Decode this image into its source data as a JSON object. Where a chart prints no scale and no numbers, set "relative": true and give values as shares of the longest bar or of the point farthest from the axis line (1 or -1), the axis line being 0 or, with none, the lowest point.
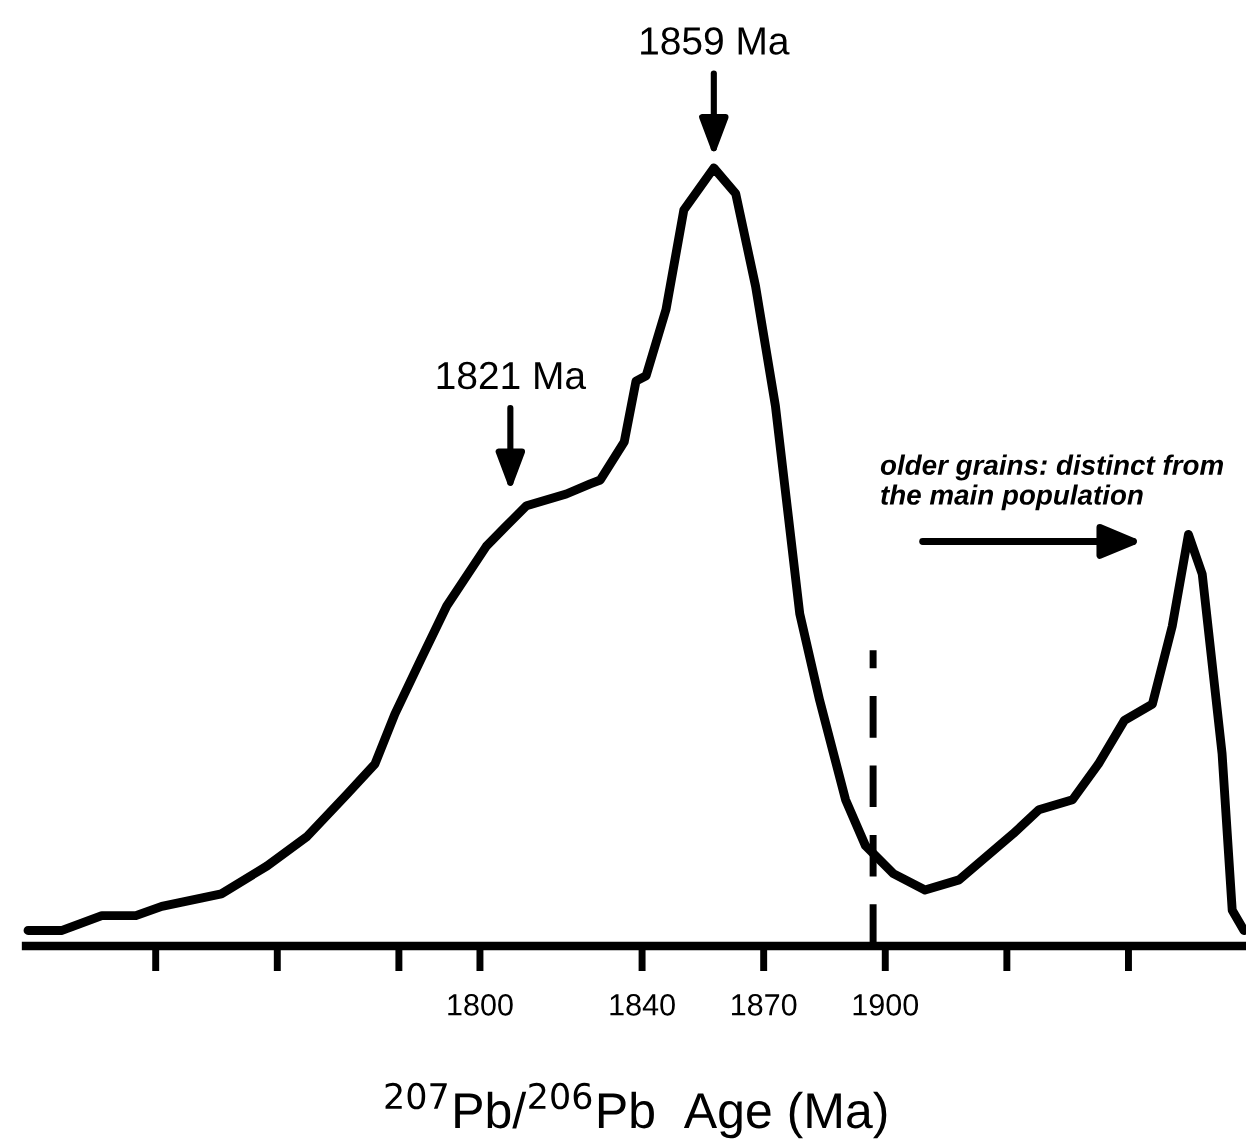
{
  "chart_data": {
    "type": "line",
    "relative": true,
    "color": "#000000",
    "marker": "none",
    "line_style": "solid",
    "grid": false,
    "legend": false,
    "tick_labels": "x",
    "xlabel": "$^{207}$Pb/$^{206}$Pb  Age (Ma)",
    "xlim": [
      1688,
      1989
    ],
    "xticks": [
      {
        "value": 1720,
        "label": null
      },
      {
        "value": 1750,
        "label": null
      },
      {
        "value": 1780,
        "label": null
      },
      1800,
      1840,
      1870,
      1900,
      {
        "value": 1930,
        "label": null
      },
      {
        "value": 1960,
        "label": null
      }
    ],
    "x": [
      1688.5,
      1696.9,
      1706.7,
      1715.1,
      1721.5,
      1736.2,
      1747.5,
      1757.4,
      1767.2,
      1774.1,
      1779.0,
      1785.4,
      1791.8,
      1801.6,
      1806.5,
      1811.5,
      1821.3,
      1827.2,
      1829.7,
      1835.6,
      1838.5,
      1841.0,
      1845.9,
      1850.3,
      1857.7,
      1863.1,
      1868.0,
      1872.9,
      1878.9,
      1883.8,
      1890.2,
      1895.1,
      1902.0,
      1909.8,
      1918.2,
      1931.5,
      1937.9,
      1946.2,
      1952.6,
      1959.0,
      1965.9,
      1970.8,
      1974.8,
      1978.2,
      1983.1,
      1985.6,
      1988.5
    ],
    "values": [
      0.02,
      0.02,
      0.039,
      0.039,
      0.051,
      0.067,
      0.103,
      0.141,
      0.195,
      0.234,
      0.298,
      0.368,
      0.437,
      0.514,
      0.54,
      0.566,
      0.581,
      0.594,
      0.599,
      0.648,
      0.726,
      0.733,
      0.818,
      0.946,
      1.0,
      0.967,
      0.848,
      0.694,
      0.427,
      0.316,
      0.188,
      0.129,
      0.093,
      0.072,
      0.085,
      0.144,
      0.175,
      0.188,
      0.234,
      0.29,
      0.311,
      0.411,
      0.529,
      0.478,
      0.247,
      0.046,
      0.02
    ],
    "ref_lines": [
      {
        "axis": "x",
        "value": 1897,
        "line_style": "dashed",
        "color": "#000000"
      }
    ],
    "annotations": [
      {
        "text": "1859 Ma",
        "x": 1857.7,
        "y": 1.0
      },
      {
        "text": "1821 Ma",
        "x": 1807.5,
        "y": 0.57
      },
      "older grains: distinct from\nthe main population"
    ]
  }
}
